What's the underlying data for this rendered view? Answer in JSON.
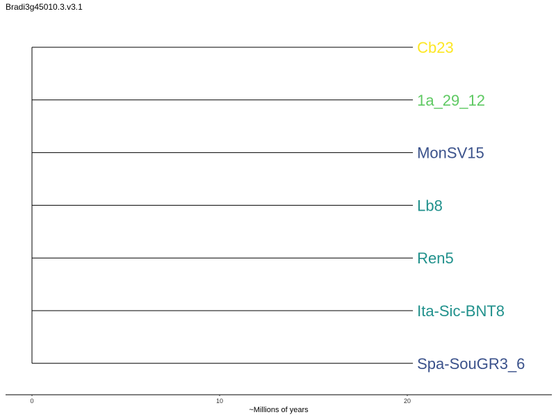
{
  "title": "Bradi3g45010.3.v3.1",
  "chart_data": {
    "type": "dendrogram",
    "xlabel": "~Millions of years",
    "xlim": [
      0,
      27.6
    ],
    "xticks": [
      0,
      10,
      20
    ],
    "root_age": 0,
    "leaves": [
      {
        "name": "Cb23",
        "length": 20.3,
        "color": "#fde725"
      },
      {
        "name": "1a_29_12",
        "length": 20.3,
        "color": "#5ec962"
      },
      {
        "name": "MonSV15",
        "length": 20.3,
        "color": "#3b528b"
      },
      {
        "name": "Lb8",
        "length": 20.3,
        "color": "#21918c"
      },
      {
        "name": "Ren5",
        "length": 20.3,
        "color": "#21918c"
      },
      {
        "name": "Ita-Sic-BNT8",
        "length": 20.3,
        "color": "#21918c"
      },
      {
        "name": "Spa-SouGR3_6",
        "length": 20.3,
        "color": "#3b528b"
      }
    ]
  }
}
